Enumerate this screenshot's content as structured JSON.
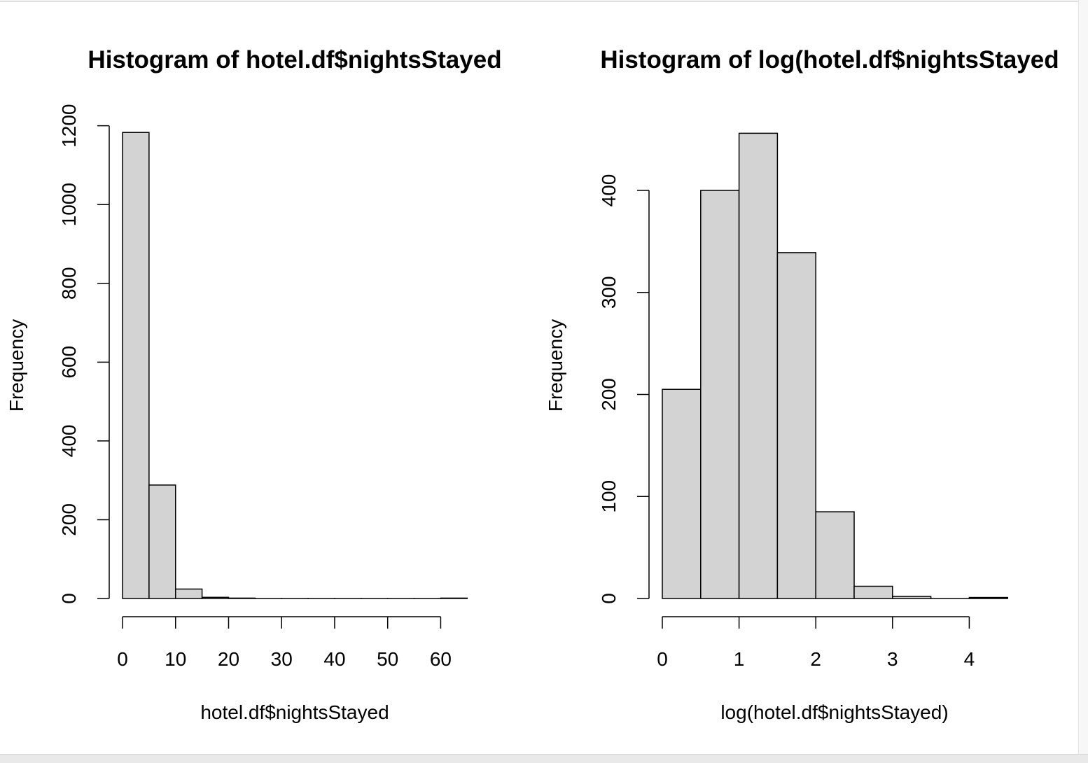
{
  "chart_data": [
    {
      "type": "bar",
      "title": "Histogram of hotel.df$nightsStayed",
      "xlabel": "hotel.df$nightsStayed",
      "ylabel": "Frequency",
      "bin_edges": [
        0,
        5,
        10,
        15,
        20,
        25,
        30,
        35,
        40,
        45,
        50,
        55,
        60,
        65
      ],
      "values": [
        1183,
        288,
        24,
        3,
        1,
        0,
        0,
        0,
        0,
        0,
        0,
        0,
        1
      ],
      "x_ticks": [
        0,
        10,
        20,
        30,
        40,
        50,
        60
      ],
      "y_ticks": [
        0,
        200,
        400,
        600,
        800,
        1000,
        1200
      ],
      "xlim": [
        0,
        65
      ],
      "ylim": [
        0,
        1200
      ],
      "bar_color": "#d3d3d3",
      "grid": false
    },
    {
      "type": "bar",
      "title": "Histogram of log(hotel.df$nightsStayed",
      "xlabel": "log(hotel.df$nightsStayed)",
      "ylabel": "Frequency",
      "bin_edges": [
        0,
        0.5,
        1,
        1.5,
        2,
        2.5,
        3,
        3.5,
        4,
        4.5
      ],
      "values": [
        205,
        400,
        456,
        339,
        85,
        12,
        2,
        0,
        1
      ],
      "x_ticks": [
        0,
        1,
        2,
        3,
        4
      ],
      "y_ticks": [
        0,
        100,
        200,
        300,
        400
      ],
      "xlim": [
        0,
        4.5
      ],
      "ylim": [
        0,
        400
      ],
      "bar_color": "#d3d3d3",
      "grid": false
    }
  ]
}
